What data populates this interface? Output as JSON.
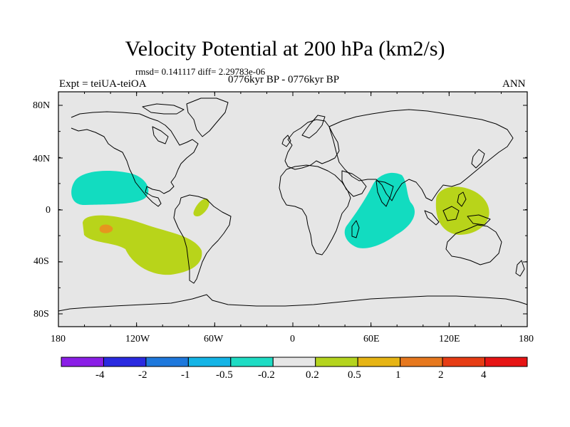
{
  "title": "Velocity Potential at 200 hPa (km2/s)",
  "stats": "rmsd= 0.141117 diff= 2.29783e-06",
  "experiment": "Expt = teiUA-teiOA",
  "period": "0776kyr BP - 0776kyr BP",
  "season": "ANN",
  "lat_ticks": [
    "80N",
    "40N",
    "0",
    "40S",
    "80S"
  ],
  "lon_ticks": [
    "180",
    "120W",
    "60W",
    "0",
    "60E",
    "120E",
    "180"
  ],
  "colorbar": {
    "labels": [
      "-4",
      "-2",
      "-1",
      "-0.5",
      "-0.2",
      "0.2",
      "0.5",
      "1",
      "2",
      "4"
    ],
    "colors": [
      "#8a1ee6",
      "#2a2ae0",
      "#1e78dc",
      "#14b4e6",
      "#1edcc4",
      "#e6e6e6",
      "#b4d41e",
      "#e6b414",
      "#e6781e",
      "#e63c14",
      "#e61414"
    ]
  },
  "colors": {
    "ocean_background": "#e6e6e6",
    "positive_region": "#b8d41a",
    "negative_region": "#12dcc0",
    "peak_region": "#e6961e"
  }
}
